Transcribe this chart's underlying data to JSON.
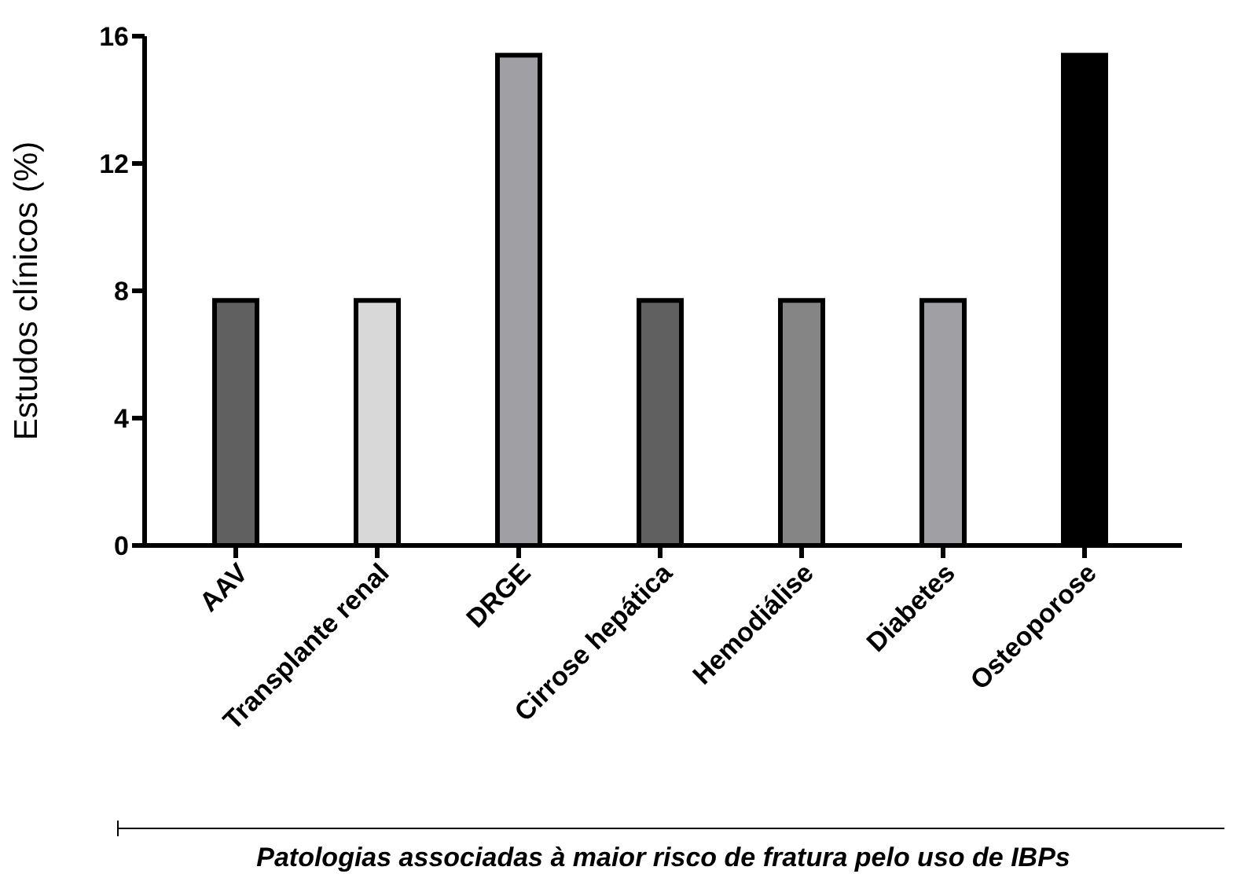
{
  "chart_data": {
    "type": "bar",
    "xlabel": "Patologias associadas à maior risco de fratura pelo uso de IBPs",
    "ylabel": "Estudos clínicos (%)",
    "categories": [
      "AAV",
      "Transplante renal",
      "DRGE",
      "Cirrose hepática",
      "Hemodiálise",
      "Diabetes",
      "Osteoporose"
    ],
    "values": [
      7.7,
      7.7,
      15.4,
      7.7,
      7.7,
      7.7,
      15.4
    ],
    "colors": [
      "#606060",
      "#d8d8d8",
      "#a0a0a4",
      "#606060",
      "#858585",
      "#a0a0a4",
      "#000000"
    ],
    "ylim": [
      0,
      16
    ],
    "yticks": [
      0,
      4,
      8,
      12,
      16
    ],
    "grid": false,
    "legend": false
  }
}
